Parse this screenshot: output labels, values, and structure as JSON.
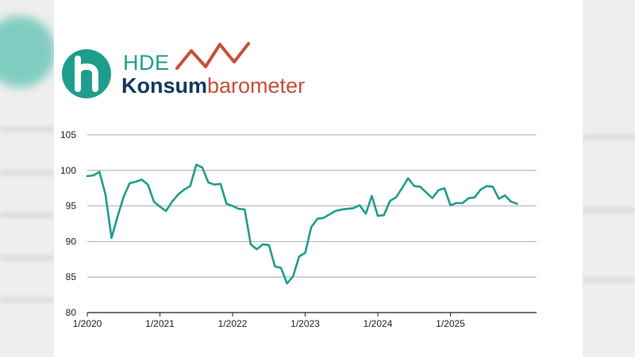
{
  "brand": {
    "hde": "HDE",
    "wordmark_bold": "Konsum",
    "wordmark_light": "barometer",
    "colors": {
      "teal": "#1f9d8c",
      "navy": "#13385d",
      "red": "#c94e3b"
    },
    "icons": [
      "h-letter-logo-icon",
      "zigzag-trend-icon"
    ]
  },
  "chart_data": {
    "type": "line",
    "title": "",
    "xlabel": "",
    "ylabel": "",
    "ylim": [
      80,
      105
    ],
    "yticks": [
      105,
      100,
      95,
      90,
      85,
      80
    ],
    "xtick_labels": [
      "1/2020",
      "1/2021",
      "1/2022",
      "1/2023",
      "1/2024",
      "1/2025"
    ],
    "grid": "horizontal",
    "x": [
      "2020-01",
      "2020-02",
      "2020-03",
      "2020-04",
      "2020-05",
      "2020-06",
      "2020-07",
      "2020-08",
      "2020-09",
      "2020-10",
      "2020-11",
      "2020-12",
      "2021-01",
      "2021-02",
      "2021-03",
      "2021-04",
      "2021-05",
      "2021-06",
      "2021-07",
      "2021-08",
      "2021-09",
      "2021-10",
      "2021-11",
      "2021-12",
      "2022-01",
      "2022-02",
      "2022-03",
      "2022-04",
      "2022-05",
      "2022-06",
      "2022-07",
      "2022-08",
      "2022-09",
      "2022-10",
      "2022-11",
      "2022-12",
      "2023-01",
      "2023-02",
      "2023-03",
      "2023-04",
      "2023-05",
      "2023-06",
      "2023-07",
      "2023-08",
      "2023-09",
      "2023-10",
      "2023-11",
      "2023-12",
      "2024-01",
      "2024-02",
      "2024-03",
      "2024-04",
      "2024-05",
      "2024-06",
      "2024-07",
      "2024-08",
      "2024-09",
      "2024-10",
      "2024-11",
      "2024-12",
      "2025-01",
      "2025-02",
      "2025-03",
      "2025-04",
      "2025-05",
      "2025-06",
      "2025-07",
      "2025-08",
      "2025-09",
      "2025-10",
      "2025-11",
      "2025-12"
    ],
    "series": [
      {
        "color": "#1f9d8c",
        "values": [
          99.2,
          99.3,
          99.8,
          96.6,
          90.5,
          93.5,
          96.3,
          98.2,
          98.4,
          98.7,
          98.0,
          95.6,
          94.9,
          94.3,
          95.6,
          96.6,
          97.3,
          97.8,
          100.8,
          100.4,
          98.3,
          98.0,
          98.1,
          95.3,
          95.0,
          94.6,
          94.5,
          89.6,
          88.9,
          89.6,
          89.5,
          86.5,
          86.3,
          84.1,
          85.1,
          87.9,
          88.4,
          92.0,
          93.2,
          93.3,
          93.8,
          94.3,
          94.5,
          94.6,
          94.7,
          95.1,
          93.9,
          96.4,
          93.6,
          93.7,
          95.7,
          96.2,
          97.5,
          98.9,
          97.8,
          97.7,
          96.9,
          96.1,
          97.2,
          97.5,
          95.1,
          95.4,
          95.4,
          96.1,
          96.2,
          97.3,
          97.8,
          97.7,
          96.0,
          96.5,
          95.6,
          95.3
        ]
      }
    ]
  }
}
